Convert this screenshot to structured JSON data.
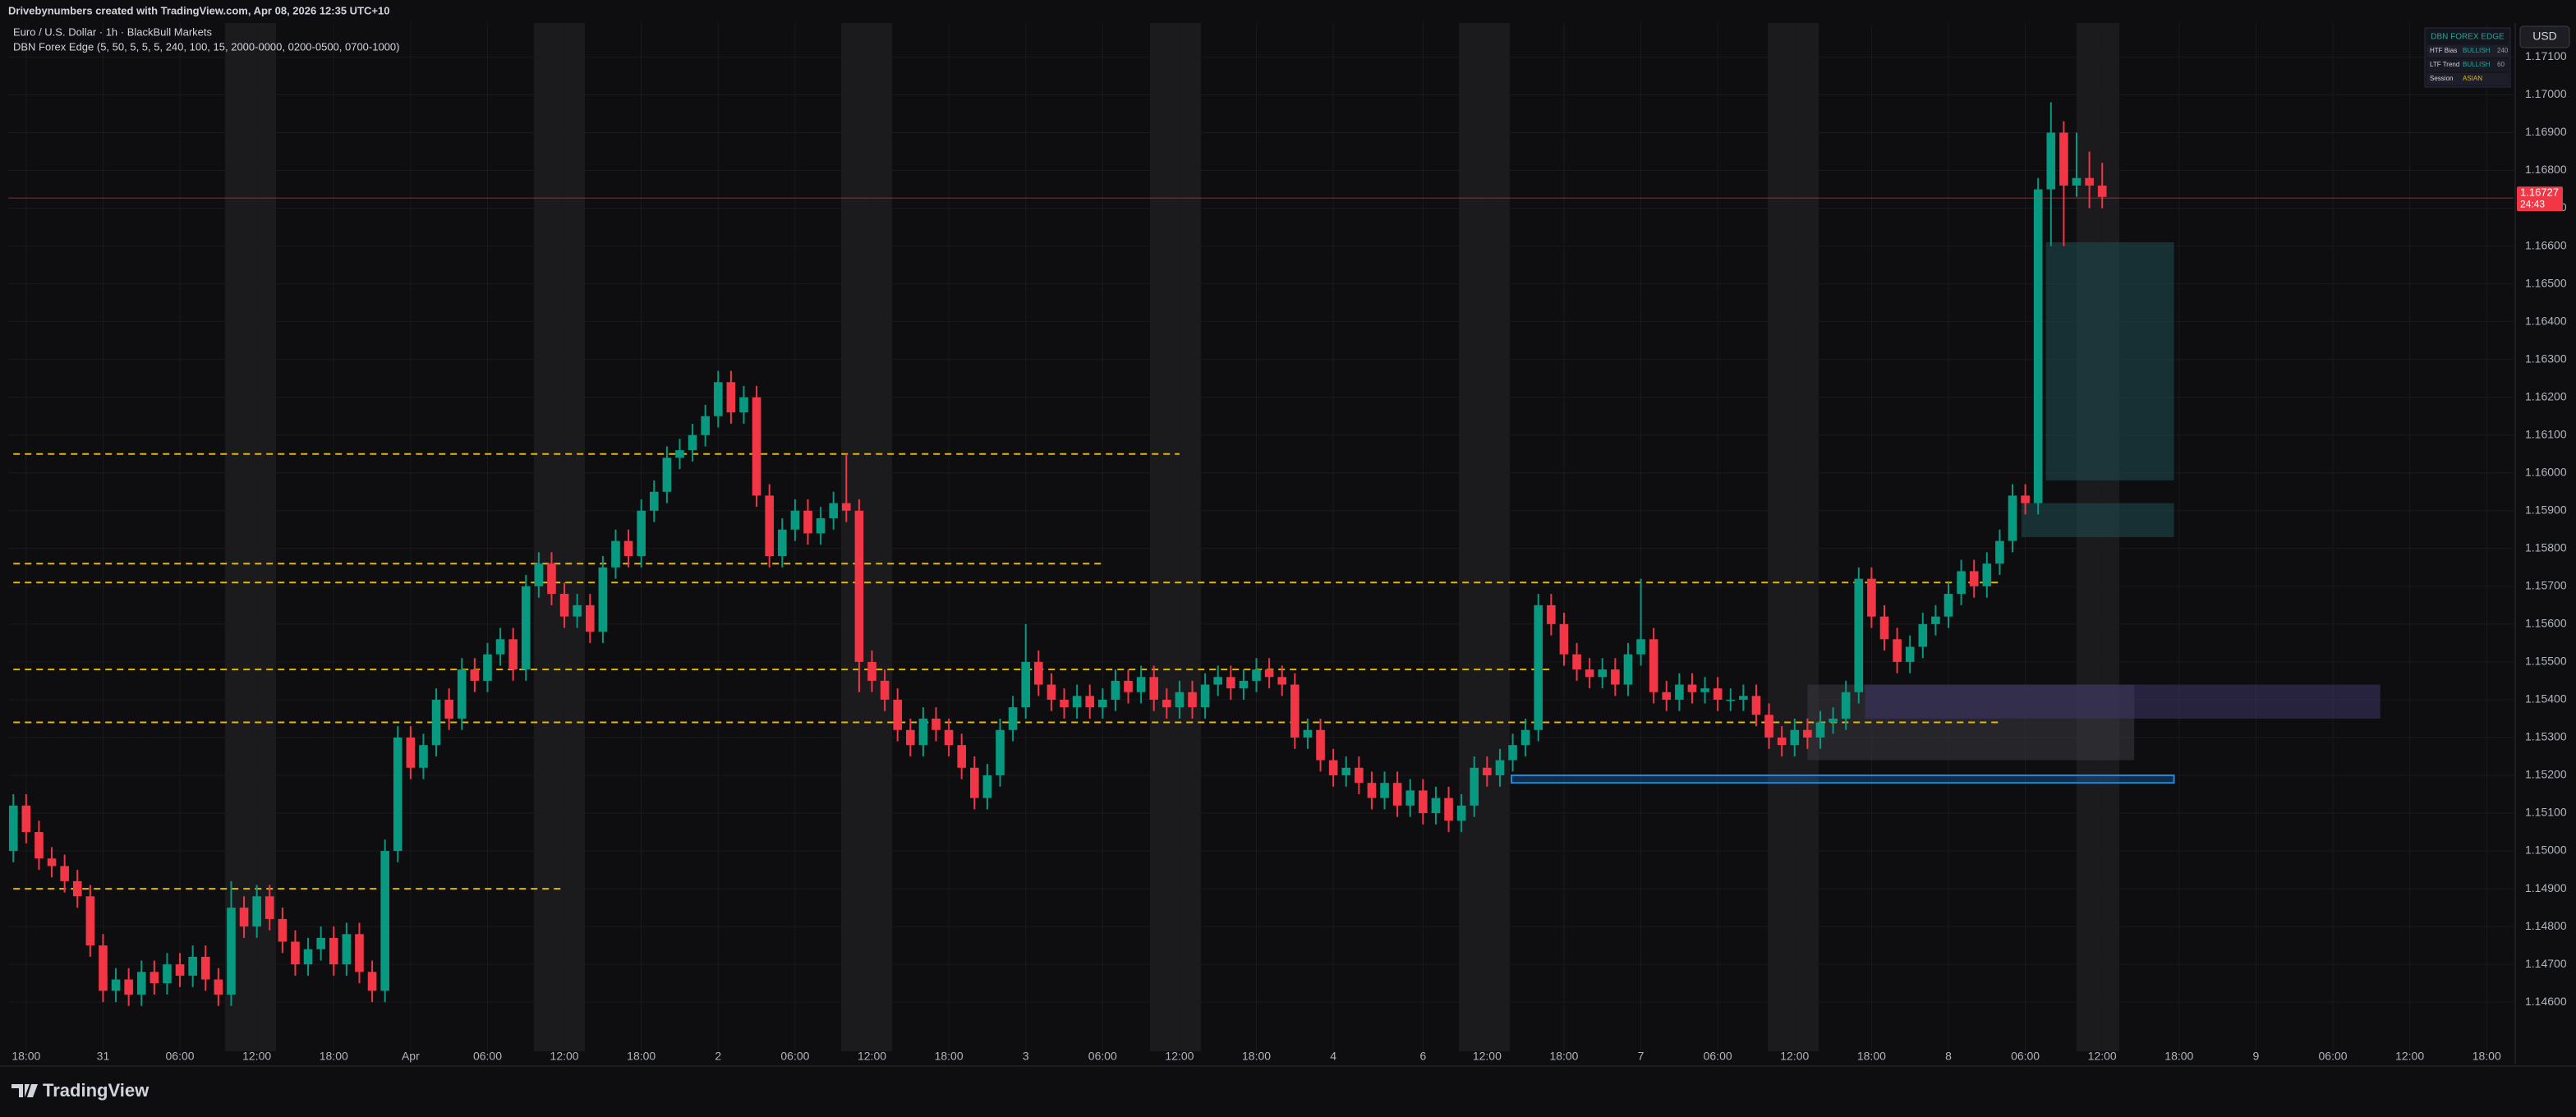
{
  "header": {
    "credit": "Drivebynumbers created with TradingView.com, Apr 08, 2026 12:35 UTC+10",
    "symbol": "Euro / U.S. Dollar · 1h · BlackBull Markets",
    "indicator": "DBN Forex Edge (5, 50, 5, 5, 5, 240, 100, 15, 2000-0000, 0200-0500, 0700-1000)"
  },
  "chart_data": {
    "type": "candlestick",
    "colors": {
      "up": "#089981",
      "down": "#f23645"
    },
    "ohlc": [
      [
        1.15,
        1.1515,
        1.1497,
        1.1512
      ],
      [
        1.1512,
        1.1515,
        1.1502,
        1.1505
      ],
      [
        1.1505,
        1.1508,
        1.1495,
        1.1498
      ],
      [
        1.1498,
        1.1501,
        1.1493,
        1.1496
      ],
      [
        1.1496,
        1.1499,
        1.1489,
        1.1492
      ],
      [
        1.1492,
        1.1495,
        1.1485,
        1.1488
      ],
      [
        1.1488,
        1.1491,
        1.1472,
        1.1475
      ],
      [
        1.1475,
        1.1478,
        1.146,
        1.1463
      ],
      [
        1.1463,
        1.1469,
        1.146,
        1.1466
      ],
      [
        1.1466,
        1.1469,
        1.1459,
        1.1462
      ],
      [
        1.1462,
        1.1471,
        1.1459,
        1.1468
      ],
      [
        1.1468,
        1.1471,
        1.1462,
        1.1465
      ],
      [
        1.1465,
        1.1473,
        1.1462,
        1.147
      ],
      [
        1.147,
        1.1473,
        1.1464,
        1.1467
      ],
      [
        1.1467,
        1.1475,
        1.1464,
        1.1472
      ],
      [
        1.1472,
        1.1475,
        1.1463,
        1.1466
      ],
      [
        1.1466,
        1.1469,
        1.1459,
        1.1462
      ],
      [
        1.1462,
        1.1492,
        1.1459,
        1.1485
      ],
      [
        1.1485,
        1.1488,
        1.1477,
        1.148
      ],
      [
        1.148,
        1.1491,
        1.1477,
        1.1488
      ],
      [
        1.1488,
        1.1491,
        1.1479,
        1.1482
      ],
      [
        1.1482,
        1.1485,
        1.1473,
        1.1476
      ],
      [
        1.1476,
        1.1479,
        1.1467,
        1.147
      ],
      [
        1.147,
        1.1477,
        1.1467,
        1.1474
      ],
      [
        1.1474,
        1.148,
        1.1471,
        1.1477
      ],
      [
        1.1477,
        1.148,
        1.1467,
        1.147
      ],
      [
        1.147,
        1.1481,
        1.1467,
        1.1478
      ],
      [
        1.1478,
        1.1481,
        1.1465,
        1.1468
      ],
      [
        1.1468,
        1.1471,
        1.146,
        1.1463
      ],
      [
        1.1463,
        1.1503,
        1.146,
        1.15
      ],
      [
        1.15,
        1.1533,
        1.1497,
        1.153
      ],
      [
        1.153,
        1.1533,
        1.1519,
        1.1522
      ],
      [
        1.1522,
        1.1531,
        1.1519,
        1.1528
      ],
      [
        1.1528,
        1.1543,
        1.1525,
        1.154
      ],
      [
        1.154,
        1.1543,
        1.1532,
        1.1535
      ],
      [
        1.1535,
        1.1551,
        1.1532,
        1.1548
      ],
      [
        1.1548,
        1.1551,
        1.1542,
        1.1545
      ],
      [
        1.1545,
        1.1555,
        1.1542,
        1.1552
      ],
      [
        1.1552,
        1.1559,
        1.1549,
        1.1556
      ],
      [
        1.1556,
        1.1559,
        1.1545,
        1.1548
      ],
      [
        1.1548,
        1.1573,
        1.1545,
        1.157
      ],
      [
        1.157,
        1.1579,
        1.1567,
        1.1576
      ],
      [
        1.1576,
        1.1579,
        1.1565,
        1.1568
      ],
      [
        1.1568,
        1.1571,
        1.1559,
        1.1562
      ],
      [
        1.1562,
        1.1568,
        1.1559,
        1.1565
      ],
      [
        1.1565,
        1.1568,
        1.1555,
        1.1558
      ],
      [
        1.1558,
        1.1578,
        1.1555,
        1.1575
      ],
      [
        1.1575,
        1.1585,
        1.1572,
        1.1582
      ],
      [
        1.1582,
        1.1585,
        1.1575,
        1.1578
      ],
      [
        1.1578,
        1.1593,
        1.1575,
        1.159
      ],
      [
        1.159,
        1.1598,
        1.1587,
        1.1595
      ],
      [
        1.1595,
        1.1607,
        1.1592,
        1.1604
      ],
      [
        1.1604,
        1.1609,
        1.1601,
        1.1606
      ],
      [
        1.1606,
        1.1613,
        1.1603,
        1.161
      ],
      [
        1.161,
        1.1618,
        1.1607,
        1.1615
      ],
      [
        1.1615,
        1.1627,
        1.1612,
        1.1624
      ],
      [
        1.1624,
        1.1627,
        1.1613,
        1.1616
      ],
      [
        1.1616,
        1.1623,
        1.1613,
        1.162
      ],
      [
        1.162,
        1.1623,
        1.1591,
        1.1594
      ],
      [
        1.1594,
        1.1597,
        1.1575,
        1.1578
      ],
      [
        1.1578,
        1.1588,
        1.1575,
        1.1585
      ],
      [
        1.1585,
        1.1593,
        1.1582,
        1.159
      ],
      [
        1.159,
        1.1593,
        1.1581,
        1.1584
      ],
      [
        1.1584,
        1.1591,
        1.1581,
        1.1588
      ],
      [
        1.1588,
        1.1595,
        1.1585,
        1.1592
      ],
      [
        1.1592,
        1.1605,
        1.1587,
        1.159
      ],
      [
        1.159,
        1.1593,
        1.1542,
        1.155
      ],
      [
        1.155,
        1.1553,
        1.1542,
        1.1545
      ],
      [
        1.1545,
        1.1548,
        1.1537,
        1.154
      ],
      [
        1.154,
        1.1543,
        1.1529,
        1.1532
      ],
      [
        1.1532,
        1.1535,
        1.1525,
        1.1528
      ],
      [
        1.1528,
        1.1538,
        1.1525,
        1.1535
      ],
      [
        1.1535,
        1.1538,
        1.1529,
        1.1532
      ],
      [
        1.1532,
        1.1535,
        1.1525,
        1.1528
      ],
      [
        1.1528,
        1.1531,
        1.1519,
        1.1522
      ],
      [
        1.1522,
        1.1525,
        1.1511,
        1.1514
      ],
      [
        1.1514,
        1.1523,
        1.1511,
        1.152
      ],
      [
        1.152,
        1.1535,
        1.1517,
        1.1532
      ],
      [
        1.1532,
        1.1541,
        1.1529,
        1.1538
      ],
      [
        1.1538,
        1.156,
        1.1535,
        1.155
      ],
      [
        1.155,
        1.1553,
        1.1541,
        1.1544
      ],
      [
        1.1544,
        1.1547,
        1.1537,
        1.154
      ],
      [
        1.154,
        1.1543,
        1.1535,
        1.1538
      ],
      [
        1.1538,
        1.1544,
        1.1535,
        1.1541
      ],
      [
        1.1541,
        1.1544,
        1.1535,
        1.1538
      ],
      [
        1.1538,
        1.1543,
        1.1535,
        1.154
      ],
      [
        1.154,
        1.1548,
        1.1537,
        1.1545
      ],
      [
        1.1545,
        1.1548,
        1.1539,
        1.1542
      ],
      [
        1.1542,
        1.1549,
        1.1539,
        1.1546
      ],
      [
        1.1546,
        1.1549,
        1.1537,
        1.154
      ],
      [
        1.154,
        1.1543,
        1.1535,
        1.1538
      ],
      [
        1.1538,
        1.1545,
        1.1535,
        1.1542
      ],
      [
        1.1542,
        1.1545,
        1.1535,
        1.1538
      ],
      [
        1.1538,
        1.1547,
        1.1535,
        1.1544
      ],
      [
        1.1544,
        1.1549,
        1.1541,
        1.1546
      ],
      [
        1.1546,
        1.1549,
        1.154,
        1.1543
      ],
      [
        1.1543,
        1.1548,
        1.154,
        1.1545
      ],
      [
        1.1545,
        1.1551,
        1.1542,
        1.1548
      ],
      [
        1.1548,
        1.1551,
        1.1543,
        1.1546
      ],
      [
        1.1546,
        1.1549,
        1.1541,
        1.1544
      ],
      [
        1.1544,
        1.1547,
        1.1527,
        1.153
      ],
      [
        1.153,
        1.1535,
        1.1527,
        1.1532
      ],
      [
        1.1532,
        1.1535,
        1.1521,
        1.1524
      ],
      [
        1.1524,
        1.1527,
        1.1517,
        1.152
      ],
      [
        1.152,
        1.1525,
        1.1517,
        1.1522
      ],
      [
        1.1522,
        1.1525,
        1.1515,
        1.1518
      ],
      [
        1.1518,
        1.1521,
        1.1511,
        1.1514
      ],
      [
        1.1514,
        1.1521,
        1.1511,
        1.1518
      ],
      [
        1.1518,
        1.1521,
        1.1509,
        1.1512
      ],
      [
        1.1512,
        1.1519,
        1.1509,
        1.1516
      ],
      [
        1.1516,
        1.1519,
        1.1507,
        1.151
      ],
      [
        1.151,
        1.1517,
        1.1507,
        1.1514
      ],
      [
        1.1514,
        1.1517,
        1.1505,
        1.1508
      ],
      [
        1.1508,
        1.1515,
        1.1505,
        1.1512
      ],
      [
        1.1512,
        1.1525,
        1.1509,
        1.1522
      ],
      [
        1.1522,
        1.1525,
        1.1517,
        1.152
      ],
      [
        1.152,
        1.1527,
        1.1517,
        1.1524
      ],
      [
        1.1524,
        1.1531,
        1.1521,
        1.1528
      ],
      [
        1.1528,
        1.1535,
        1.1525,
        1.1532
      ],
      [
        1.1532,
        1.1568,
        1.1529,
        1.1565
      ],
      [
        1.1565,
        1.1568,
        1.1557,
        1.156
      ],
      [
        1.156,
        1.1563,
        1.1549,
        1.1552
      ],
      [
        1.1552,
        1.1555,
        1.1545,
        1.1548
      ],
      [
        1.1548,
        1.1551,
        1.1543,
        1.1546
      ],
      [
        1.1546,
        1.1551,
        1.1543,
        1.1548
      ],
      [
        1.1548,
        1.1551,
        1.1541,
        1.1544
      ],
      [
        1.1544,
        1.1555,
        1.1541,
        1.1552
      ],
      [
        1.1552,
        1.1572,
        1.1549,
        1.1556
      ],
      [
        1.1556,
        1.1559,
        1.1539,
        1.1542
      ],
      [
        1.1542,
        1.1545,
        1.1537,
        1.154
      ],
      [
        1.154,
        1.1547,
        1.1537,
        1.1544
      ],
      [
        1.1544,
        1.1547,
        1.1539,
        1.1542
      ],
      [
        1.1542,
        1.1546,
        1.1539,
        1.1543
      ],
      [
        1.1543,
        1.1546,
        1.1537,
        1.154
      ],
      [
        1.154,
        1.1543,
        1.1537,
        1.154
      ],
      [
        1.154,
        1.1544,
        1.1537,
        1.1541
      ],
      [
        1.1541,
        1.1544,
        1.1533,
        1.1536
      ],
      [
        1.1536,
        1.1539,
        1.1527,
        1.153
      ],
      [
        1.153,
        1.1533,
        1.1525,
        1.1528
      ],
      [
        1.1528,
        1.1535,
        1.1525,
        1.1532
      ],
      [
        1.1532,
        1.1535,
        1.1527,
        1.153
      ],
      [
        1.153,
        1.1537,
        1.1527,
        1.1534
      ],
      [
        1.1534,
        1.1538,
        1.1531,
        1.1535
      ],
      [
        1.1535,
        1.1545,
        1.1532,
        1.1542
      ],
      [
        1.1542,
        1.1575,
        1.1539,
        1.1572
      ],
      [
        1.1572,
        1.1575,
        1.1559,
        1.1562
      ],
      [
        1.1562,
        1.1565,
        1.1553,
        1.1556
      ],
      [
        1.1556,
        1.1559,
        1.1547,
        1.155
      ],
      [
        1.155,
        1.1557,
        1.1547,
        1.1554
      ],
      [
        1.1554,
        1.1563,
        1.1551,
        1.156
      ],
      [
        1.156,
        1.1565,
        1.1557,
        1.1562
      ],
      [
        1.1562,
        1.1571,
        1.1559,
        1.1568
      ],
      [
        1.1568,
        1.1577,
        1.1565,
        1.1574
      ],
      [
        1.1574,
        1.1577,
        1.1567,
        1.157
      ],
      [
        1.157,
        1.1579,
        1.1567,
        1.1576
      ],
      [
        1.1576,
        1.1585,
        1.1573,
        1.1582
      ],
      [
        1.1582,
        1.1597,
        1.1579,
        1.1594
      ],
      [
        1.1594,
        1.1597,
        1.1589,
        1.1592
      ],
      [
        1.1592,
        1.1678,
        1.1589,
        1.1675
      ],
      [
        1.1675,
        1.1698,
        1.166,
        1.169
      ],
      [
        1.169,
        1.1693,
        1.166,
        1.1676
      ],
      [
        1.1676,
        1.169,
        1.1673,
        1.1678
      ],
      [
        1.1678,
        1.1685,
        1.167,
        1.1676
      ],
      [
        1.1676,
        1.1682,
        1.167,
        1.1673
      ]
    ],
    "xlim": [
      -0.4,
      195.1
    ],
    "xticks": [
      {
        "value": 1,
        "label": "18:00"
      },
      {
        "value": 7,
        "label": "31"
      },
      {
        "value": 13,
        "label": "06:00"
      },
      {
        "value": 19,
        "label": "12:00"
      },
      {
        "value": 25,
        "label": "18:00"
      },
      {
        "value": 31,
        "label": "Apr"
      },
      {
        "value": 37,
        "label": "06:00"
      },
      {
        "value": 43,
        "label": "12:00"
      },
      {
        "value": 49,
        "label": "18:00"
      },
      {
        "value": 55,
        "label": "2"
      },
      {
        "value": 61,
        "label": "06:00"
      },
      {
        "value": 67,
        "label": "12:00"
      },
      {
        "value": 73,
        "label": "18:00"
      },
      {
        "value": 79,
        "label": "3"
      },
      {
        "value": 85,
        "label": "06:00"
      },
      {
        "value": 91,
        "label": "12:00"
      },
      {
        "value": 97,
        "label": "18:00"
      },
      {
        "value": 103,
        "label": "4"
      },
      {
        "value": 110,
        "label": "6"
      },
      {
        "value": 115,
        "label": "12:00"
      },
      {
        "value": 121,
        "label": "18:00"
      },
      {
        "value": 127,
        "label": "7"
      },
      {
        "value": 133,
        "label": "06:00"
      },
      {
        "value": 139,
        "label": "12:00"
      },
      {
        "value": 145,
        "label": "18:00"
      },
      {
        "value": 151,
        "label": "8"
      },
      {
        "value": 157,
        "label": "06:00"
      },
      {
        "value": 163,
        "label": "12:00"
      },
      {
        "value": 169,
        "label": "18:00"
      },
      {
        "value": 175,
        "label": "9"
      },
      {
        "value": 181,
        "label": "06:00"
      },
      {
        "value": 187,
        "label": "12:00"
      },
      {
        "value": 193,
        "label": "18:00"
      }
    ],
    "ylim": [
      1.1447,
      1.1719
    ],
    "yticks": [
      {
        "value": 1.146,
        "label": "1.14600"
      },
      {
        "value": 1.147,
        "label": "1.14700"
      },
      {
        "value": 1.148,
        "label": "1.14800"
      },
      {
        "value": 1.149,
        "label": "1.14900"
      },
      {
        "value": 1.15,
        "label": "1.15000"
      },
      {
        "value": 1.151,
        "label": "1.15100"
      },
      {
        "value": 1.152,
        "label": "1.15200"
      },
      {
        "value": 1.153,
        "label": "1.15300"
      },
      {
        "value": 1.154,
        "label": "1.15400"
      },
      {
        "value": 1.155,
        "label": "1.15500"
      },
      {
        "value": 1.156,
        "label": "1.15600"
      },
      {
        "value": 1.157,
        "label": "1.15700"
      },
      {
        "value": 1.158,
        "label": "1.15800"
      },
      {
        "value": 1.159,
        "label": "1.15900"
      },
      {
        "value": 1.16,
        "label": "1.16000"
      },
      {
        "value": 1.161,
        "label": "1.16100"
      },
      {
        "value": 1.162,
        "label": "1.16200"
      },
      {
        "value": 1.163,
        "label": "1.16300"
      },
      {
        "value": 1.164,
        "label": "1.16400"
      },
      {
        "value": 1.165,
        "label": "1.16500"
      },
      {
        "value": 1.166,
        "label": "1.16600"
      },
      {
        "value": 1.167,
        "label": "1.16700"
      },
      {
        "value": 1.168,
        "label": "1.16800"
      },
      {
        "value": 1.169,
        "label": "1.16900"
      },
      {
        "value": 1.17,
        "label": "1.17000"
      },
      {
        "value": 1.171,
        "label": "1.17100"
      }
    ],
    "grid": true,
    "last_price": 1.16727,
    "countdown": "24:43",
    "currency": "USD",
    "level_color": "#e6b800",
    "levels": [
      {
        "value": 1.1605,
        "from": 0,
        "to": 91
      },
      {
        "value": 1.1576,
        "from": 0,
        "to": 85
      },
      {
        "value": 1.1571,
        "from": 0,
        "to": 155
      },
      {
        "value": 1.1548,
        "from": 0,
        "to": 120
      },
      {
        "value": 1.1534,
        "from": 0,
        "to": 155
      },
      {
        "value": 1.149,
        "from": 0,
        "to": 43
      }
    ],
    "zones": [
      {
        "top": 1.1661,
        "bottom": 1.1598,
        "from": 158.6,
        "to": 168.6,
        "color": "#1f4d52"
      },
      {
        "top": 1.1592,
        "bottom": 1.1583,
        "from": 156.7,
        "to": 168.6,
        "color": "#1f4d52"
      },
      {
        "top": 1.1544,
        "bottom": 1.1524,
        "from": 140,
        "to": 165.5,
        "color": "#3a3a40"
      },
      {
        "top": 1.1544,
        "bottom": 1.1535,
        "from": 144.5,
        "to": 184.7,
        "color": "#3c3566"
      },
      {
        "top": 1.152,
        "bottom": 1.1518,
        "from": 116.9,
        "to": 168.6,
        "color": "#1e88e5"
      }
    ]
  },
  "info_table": {
    "title": "DBN FOREX EDGE",
    "rows": [
      [
        "HTF Bias",
        "BULLISH",
        "240"
      ],
      [
        "LTF Trend",
        "BULLISH",
        "60"
      ],
      [
        "Session",
        "ASIAN"
      ]
    ]
  },
  "footer": {
    "logo": "TradingView"
  }
}
